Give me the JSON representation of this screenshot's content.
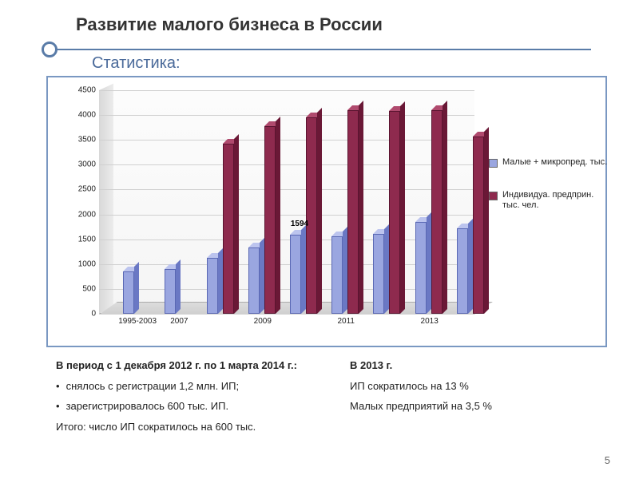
{
  "title": "Развитие малого бизнеса в России",
  "subtitle": "Статистика:",
  "chart": {
    "type": "bar",
    "ylim": [
      0,
      4500
    ],
    "ytick_step": 500,
    "yticks": [
      0,
      500,
      1000,
      1500,
      2000,
      2500,
      3000,
      3500,
      4000,
      4500
    ],
    "xlabels": [
      "1995-2003",
      "2007",
      "",
      "2009",
      "",
      "2011",
      "",
      "2013"
    ],
    "groups": [
      {
        "s1": 850,
        "s2": null
      },
      {
        "s1": 900,
        "s2": null
      },
      {
        "s1": 1120,
        "s2": 3430
      },
      {
        "s1": 1330,
        "s2": 3780
      },
      {
        "s1": 1594,
        "s2": 3960,
        "label": "1594"
      },
      {
        "s1": 1560,
        "s2": 4100
      },
      {
        "s1": 1600,
        "s2": 4080
      },
      {
        "s1": 1850,
        "s2": 4100
      },
      {
        "s1": 1720,
        "s2": 3570
      }
    ],
    "series1": {
      "name": "Малые + микропред. тыс.",
      "front": "#9aa6e0",
      "top": "#bcc4ee",
      "side": "#6a78c4",
      "border": "#5a68b4"
    },
    "series2": {
      "name": "Индивидуа. предприн. тыс. чел.",
      "front": "#8e2a4e",
      "top": "#b04a6e",
      "side": "#6a1836",
      "border": "#5a1430"
    },
    "background_color": "#ffffff",
    "grid_color": "#d0d0d0",
    "label_fontsize": 10
  },
  "footer": {
    "left": {
      "header_prefix": "В период с 1 декабря 2012 г. по 1 марта 2014 г.:",
      "b1": "снялось с регистрации  1,2 млн. ИП;",
      "b2": "зарегистрировалось 600 тыс. ИП.",
      "total": "Итого: число ИП сократилось на 600 тыс."
    },
    "right": {
      "header": "В 2013 г.",
      "l1": "ИП сократилось на 13 %",
      "l2": "Малых предприятий на 3,5 %"
    }
  },
  "pagenum": "5"
}
